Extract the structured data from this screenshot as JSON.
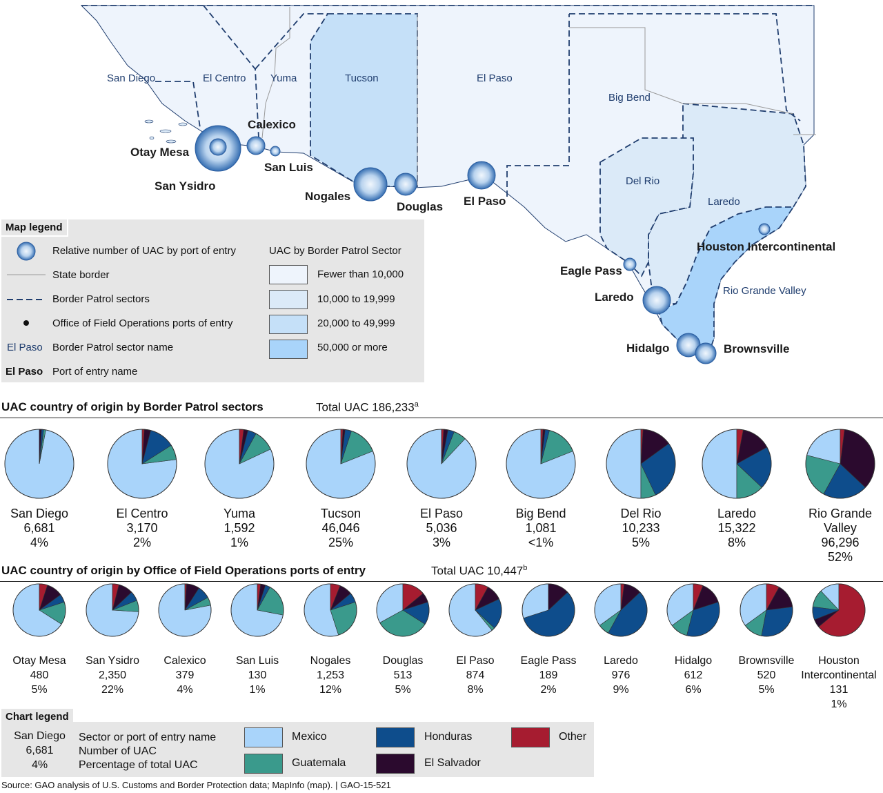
{
  "map": {
    "sector_names": [
      "San Diego",
      "El Centro",
      "Yuma",
      "Tucson",
      "El Paso",
      "Big Bend",
      "Del Rio",
      "Laredo",
      "Rio Grande Valley"
    ],
    "port_names": [
      "Otay Mesa",
      "San Ysidro",
      "Calexico",
      "San Luis",
      "Nogales",
      "Douglas",
      "El Paso",
      "Eagle Pass",
      "Laredo",
      "Hidalgo",
      "Brownsville",
      "Houston Intercontinental"
    ],
    "colors": {
      "fewer_10000": "#eef4fc",
      "10000_19999": "#dbeaf8",
      "20000_49999": "#c5e0f8",
      "50000_more": "#a9d4fa",
      "border": "#1f3d6e"
    }
  },
  "map_legend": {
    "title": "Map legend",
    "items": {
      "circle": "Relative number of UAC by port of entry",
      "state_border": "State border",
      "sectors": "Border Patrol sectors",
      "ports": "Office of Field Operations ports of entry",
      "sector_name_sample": "El Paso",
      "sector_name": "Border Patrol sector name",
      "port_name_sample": "El Paso",
      "port_name": "Port of entry name"
    },
    "scale_title": "UAC by Border Patrol Sector",
    "scale": [
      "Fewer than 10,000",
      "10,000 to 19,999",
      "20,000 to 49,999",
      "50,000 or more"
    ]
  },
  "sectors_section": {
    "title": "UAC country of origin by Border Patrol sectors",
    "total": "Total UAC 186,233",
    "total_sup": "a"
  },
  "ports_section": {
    "title": "UAC country of origin by Office of Field Operations ports of entry",
    "total": "Total UAC 10,447",
    "total_sup": "b"
  },
  "colors": {
    "Mexico": "#a9d4fa",
    "Guatemala": "#3a9a8c",
    "Honduras": "#0e4d8c",
    "El Salvador": "#2b0a2e",
    "Other": "#a61c30"
  },
  "chart_data": [
    {
      "type": "pie",
      "title": "UAC country of origin by Border Patrol sectors",
      "categories": [
        "Mexico",
        "Guatemala",
        "Honduras",
        "El Salvador",
        "Other"
      ],
      "items": [
        {
          "name": "San Diego",
          "count": "6,681",
          "pct": "4%",
          "values": [
            97,
            1,
            1,
            1,
            0
          ]
        },
        {
          "name": "El Centro",
          "count": "3,170",
          "pct": "2%",
          "values": [
            77,
            7,
            12,
            3,
            1
          ]
        },
        {
          "name": "Yuma",
          "count": "1,592",
          "pct": "1%",
          "values": [
            82,
            10,
            4,
            2,
            2
          ]
        },
        {
          "name": "Tucson",
          "count": "46,046",
          "pct": "25%",
          "values": [
            81,
            14,
            3,
            1,
            1
          ]
        },
        {
          "name": "El Paso",
          "count": "5,036",
          "pct": "3%",
          "values": [
            88,
            6,
            3,
            2,
            1
          ]
        },
        {
          "name": "Big Bend",
          "count": "1,081",
          "pct": "<1%",
          "values": [
            81,
            15,
            2,
            1,
            1
          ]
        },
        {
          "name": "Del Rio",
          "count": "10,233",
          "pct": "5%",
          "values": [
            50,
            7,
            28,
            14,
            1
          ]
        },
        {
          "name": "Laredo",
          "count": "15,322",
          "pct": "8%",
          "values": [
            50,
            13,
            20,
            14,
            3
          ]
        },
        {
          "name": "Rio Grande Valley",
          "count": "96,296",
          "pct": "52%",
          "values": [
            21,
            21,
            21,
            35,
            2
          ]
        }
      ]
    },
    {
      "type": "pie",
      "title": "UAC country of origin by Office of Field Operations ports of entry",
      "categories": [
        "Mexico",
        "Guatemala",
        "Honduras",
        "El Salvador",
        "Other"
      ],
      "items": [
        {
          "name": "Otay Mesa",
          "count": "480",
          "pct": "5%",
          "values": [
            66,
            14,
            5,
            10,
            5
          ]
        },
        {
          "name": "San Ysidro",
          "count": "2,350",
          "pct": "22%",
          "values": [
            74,
            7,
            6,
            9,
            4
          ]
        },
        {
          "name": "Calexico",
          "count": "379",
          "pct": "4%",
          "values": [
            78,
            5,
            8,
            8,
            1
          ]
        },
        {
          "name": "San Luis",
          "count": "130",
          "pct": "1%",
          "values": [
            72,
            20,
            3,
            3,
            2
          ]
        },
        {
          "name": "Nogales",
          "count": "1,253",
          "pct": "12%",
          "values": [
            55,
            25,
            6,
            8,
            6
          ]
        },
        {
          "name": "Douglas",
          "count": "513",
          "pct": "5%",
          "values": [
            33,
            33,
            14,
            6,
            14
          ]
        },
        {
          "name": "El Paso",
          "count": "874",
          "pct": "8%",
          "values": [
            61,
            2,
            19,
            10,
            8
          ]
        },
        {
          "name": "Eagle Pass",
          "count": "189",
          "pct": "2%",
          "values": [
            30,
            0,
            57,
            13,
            0
          ]
        },
        {
          "name": "Laredo",
          "count": "976",
          "pct": "9%",
          "values": [
            35,
            7,
            45,
            11,
            2
          ]
        },
        {
          "name": "Hidalgo",
          "count": "612",
          "pct": "6%",
          "values": [
            35,
            11,
            34,
            14,
            6
          ]
        },
        {
          "name": "Brownsville",
          "count": "520",
          "pct": "5%",
          "values": [
            35,
            12,
            30,
            15,
            8
          ]
        },
        {
          "name": "Houston Intercontinental",
          "count": "131",
          "pct": "1%",
          "values": [
            12,
            11,
            8,
            5,
            64
          ]
        }
      ]
    }
  ],
  "chart_legend": {
    "title": "Chart legend",
    "sample_name": "San Diego",
    "sample_count": "6,681",
    "sample_pct": "4%",
    "line1": "Sector or port of entry name",
    "line2": "Number of UAC",
    "line3": "Percentage of total UAC",
    "labels": [
      "Mexico",
      "Guatemala",
      "Honduras",
      "El Salvador",
      "Other"
    ]
  },
  "source": "Source: GAO analysis of U.S. Customs and Border Protection data; MapInfo (map).  |  GAO-15-521"
}
